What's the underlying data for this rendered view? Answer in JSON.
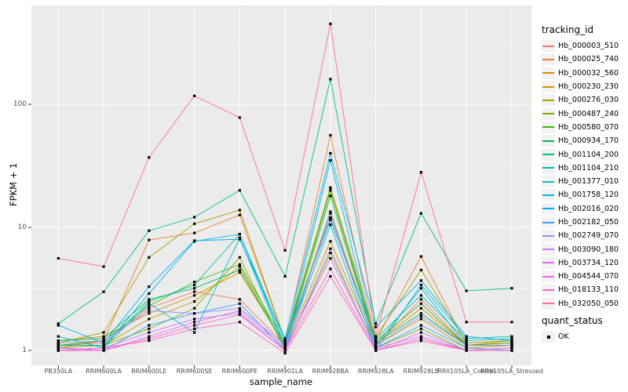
{
  "figure": {
    "background": "#FFFFFF",
    "panel_bg": "#EBEBEB",
    "grid_major_color": "#FFFFFF",
    "grid_minor_color": "#FFFFFF",
    "tick_mark_color": "#333333",
    "tick_label_color": "#4D4D4D",
    "axis_title_color": "#000000",
    "point_color": "#000000"
  },
  "axes": {
    "x_title": "sample_name",
    "y_title": "FPKM + 1",
    "y_tick_labels": [
      "1",
      "10",
      "100"
    ]
  },
  "legend": {
    "tracking_title": "tracking_id",
    "quant_title": "quant_status",
    "quant_items": [
      {
        "label": "OK"
      }
    ],
    "key_bg": "#F2F2F2"
  },
  "chart_data": {
    "type": "line",
    "title": "",
    "xlabel": "sample_name",
    "ylabel": "FPKM + 1",
    "y_scale": "log10",
    "ylim": [
      0.77,
      634
    ],
    "y_ticks": [
      1,
      10,
      100
    ],
    "y_minor_ticks": [
      3.162,
      31.623,
      316.228
    ],
    "grid": "on",
    "legend_position": "right",
    "point_shape": "filled-square",
    "point_status_label": "OK",
    "categories": [
      "PB350LA",
      "RRIM600LA",
      "RRIM600LE",
      "RRIM600SE",
      "RRIM600PE",
      "RRIM901LA",
      "RRIM928BA",
      "RRIM928LA",
      "RRIM928LB",
      "RRII105LA_Control",
      "RRII105LA_Stressed"
    ],
    "series": [
      {
        "name": "Hb_000003_510",
        "color": "#F8766D",
        "values": [
          1.1,
          1.15,
          2.2,
          3.0,
          2.6,
          1.1,
          21.0,
          1.1,
          2.6,
          1.1,
          1.1
        ]
      },
      {
        "name": "Hb_000025_740",
        "color": "#EA8331",
        "values": [
          1.05,
          1.2,
          7.9,
          9.0,
          12.6,
          1.2,
          56.0,
          1.2,
          5.8,
          1.1,
          1.15
        ]
      },
      {
        "name": "Hb_000032_560",
        "color": "#D89000",
        "values": [
          1.2,
          1.3,
          2.0,
          2.8,
          4.3,
          1.1,
          13.4,
          1.15,
          2.2,
          1.1,
          1.2
        ]
      },
      {
        "name": "Hb_000230_230",
        "color": "#C09B00",
        "values": [
          1.1,
          1.1,
          1.8,
          2.5,
          4.8,
          1.05,
          7.7,
          1.1,
          1.8,
          1.05,
          1.1
        ]
      },
      {
        "name": "Hb_000276_030",
        "color": "#A3A500",
        "values": [
          1.15,
          1.4,
          5.7,
          10.7,
          13.8,
          1.2,
          21.0,
          1.3,
          4.5,
          1.15,
          1.2
        ]
      },
      {
        "name": "Hb_000487_240",
        "color": "#7CAE00",
        "values": [
          1.05,
          1.1,
          1.5,
          2.2,
          5.7,
          1.0,
          6.2,
          1.05,
          1.5,
          1.0,
          1.05
        ]
      },
      {
        "name": "Hb_000580_070",
        "color": "#39B600",
        "values": [
          1.1,
          1.2,
          2.3,
          3.6,
          5.0,
          1.15,
          20.0,
          1.2,
          2.4,
          1.1,
          1.15
        ]
      },
      {
        "name": "Hb_000934_170",
        "color": "#00BB4E",
        "values": [
          1.2,
          1.25,
          2.6,
          3.2,
          4.5,
          1.1,
          18.0,
          1.15,
          2.0,
          1.1,
          1.1
        ]
      },
      {
        "name": "Hb_001104_200",
        "color": "#00BF7D",
        "values": [
          1.65,
          3.0,
          9.4,
          12.1,
          20.0,
          4.0,
          160.0,
          1.65,
          13.0,
          3.05,
          3.2
        ]
      },
      {
        "name": "Hb_001104_210",
        "color": "#00C1A3",
        "values": [
          1.1,
          1.1,
          2.5,
          3.4,
          8.8,
          1.2,
          11.5,
          1.25,
          2.8,
          1.2,
          1.25
        ]
      },
      {
        "name": "Hb_001377_010",
        "color": "#00BFC4",
        "values": [
          1.3,
          1.05,
          2.4,
          1.4,
          8.2,
          1.05,
          10.5,
          1.0,
          3.4,
          1.25,
          1.3
        ]
      },
      {
        "name": "Hb_001758_120",
        "color": "#00BAE0",
        "values": [
          1.0,
          1.05,
          2.9,
          7.7,
          8.8,
          1.1,
          35.0,
          1.1,
          3.2,
          1.1,
          1.1
        ]
      },
      {
        "name": "Hb_002016_020",
        "color": "#00B0F6",
        "values": [
          1.6,
          1.15,
          3.3,
          7.8,
          8.0,
          1.25,
          40.0,
          1.55,
          3.7,
          1.3,
          1.2
        ]
      },
      {
        "name": "Hb_002182_050",
        "color": "#35A2FF",
        "values": [
          1.05,
          1.0,
          1.6,
          2.0,
          2.4,
          1.0,
          13.0,
          1.05,
          1.6,
          1.05,
          1.0
        ]
      },
      {
        "name": "Hb_002749_070",
        "color": "#9590FF",
        "values": [
          1.15,
          1.2,
          2.1,
          2.0,
          2.2,
          1.1,
          12.0,
          1.1,
          1.9,
          1.1,
          1.1
        ]
      },
      {
        "name": "Hb_003090_180",
        "color": "#C77CFF",
        "values": [
          1.0,
          1.05,
          1.4,
          1.8,
          2.0,
          1.0,
          6.7,
          1.0,
          1.4,
          1.0,
          1.0
        ]
      },
      {
        "name": "Hb_003734_120",
        "color": "#E76BF3",
        "values": [
          1.05,
          1.0,
          1.3,
          1.7,
          2.1,
          1.05,
          5.6,
          1.05,
          1.3,
          1.0,
          1.05
        ]
      },
      {
        "name": "Hb_004544_070",
        "color": "#FA62DB",
        "values": [
          1.0,
          1.0,
          1.25,
          1.6,
          1.95,
          1.0,
          4.6,
          1.0,
          1.25,
          1.0,
          1.0
        ]
      },
      {
        "name": "Hb_018133_110",
        "color": "#FF62BC",
        "values": [
          1.0,
          1.05,
          1.2,
          1.5,
          1.7,
          0.95,
          4.0,
          1.0,
          1.2,
          1.0,
          1.0
        ]
      },
      {
        "name": "Hb_032050_050",
        "color": "#FF6A98",
        "values": [
          5.6,
          4.8,
          37.0,
          117.0,
          78.0,
          6.5,
          450.0,
          1.3,
          28.0,
          1.7,
          1.7
        ]
      }
    ]
  }
}
